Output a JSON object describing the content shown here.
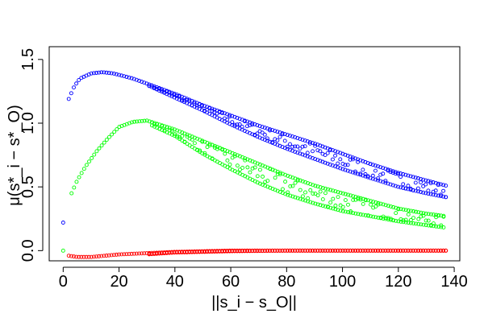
{
  "chart_data": {
    "type": "scatter",
    "xlabel": "||s_i − s_O||",
    "ylabel": "μ(s*_i − s*_O)",
    "xlim": [
      -5,
      142
    ],
    "ylim": [
      -0.08,
      1.6
    ],
    "x_ticks": [
      "0",
      "20",
      "40",
      "60",
      "80",
      "100",
      "120",
      "140"
    ],
    "y_ticks": [
      "0.0",
      "0.5",
      "1.0",
      "1.5"
    ],
    "grid": false,
    "series": [
      {
        "color": "#0000ff",
        "marker": "open-circle",
        "isolated_points": [
          [
            0,
            0.22
          ]
        ],
        "x_range": [
          2,
          137
        ],
        "upper_band": [
          [
            2,
            1.19
          ],
          [
            4,
            1.29
          ],
          [
            6,
            1.35
          ],
          [
            10,
            1.39
          ],
          [
            14,
            1.4
          ],
          [
            18,
            1.39
          ],
          [
            25,
            1.35
          ],
          [
            30,
            1.31
          ],
          [
            40,
            1.23
          ],
          [
            50,
            1.14
          ],
          [
            60,
            1.06
          ],
          [
            70,
            0.98
          ],
          [
            80,
            0.91
          ],
          [
            90,
            0.84
          ],
          [
            100,
            0.76
          ],
          [
            110,
            0.68
          ],
          [
            120,
            0.61
          ],
          [
            130,
            0.55
          ],
          [
            137,
            0.51
          ]
        ],
        "lower_band": [
          [
            2,
            1.19
          ],
          [
            4,
            1.29
          ],
          [
            6,
            1.33
          ],
          [
            10,
            1.38
          ],
          [
            14,
            1.4
          ],
          [
            18,
            1.38
          ],
          [
            25,
            1.34
          ],
          [
            30,
            1.3
          ],
          [
            40,
            1.2
          ],
          [
            50,
            1.1
          ],
          [
            60,
            0.99
          ],
          [
            70,
            0.89
          ],
          [
            80,
            0.8
          ],
          [
            90,
            0.72
          ],
          [
            100,
            0.64
          ],
          [
            110,
            0.57
          ],
          [
            120,
            0.5
          ],
          [
            130,
            0.45
          ],
          [
            137,
            0.42
          ]
        ]
      },
      {
        "color": "#00ff00",
        "marker": "open-circle",
        "isolated_points": [
          [
            0,
            0.0
          ]
        ],
        "x_range": [
          3,
          137
        ],
        "upper_band": [
          [
            3,
            0.45
          ],
          [
            5,
            0.55
          ],
          [
            8,
            0.66
          ],
          [
            12,
            0.78
          ],
          [
            16,
            0.88
          ],
          [
            20,
            0.97
          ],
          [
            25,
            1.01
          ],
          [
            30,
            1.02
          ],
          [
            40,
            0.95
          ],
          [
            50,
            0.86
          ],
          [
            60,
            0.77
          ],
          [
            70,
            0.68
          ],
          [
            80,
            0.59
          ],
          [
            90,
            0.51
          ],
          [
            100,
            0.45
          ],
          [
            110,
            0.39
          ],
          [
            120,
            0.33
          ],
          [
            130,
            0.29
          ],
          [
            137,
            0.27
          ]
        ],
        "lower_band": [
          [
            3,
            0.45
          ],
          [
            5,
            0.53
          ],
          [
            8,
            0.62
          ],
          [
            12,
            0.74
          ],
          [
            16,
            0.84
          ],
          [
            20,
            0.93
          ],
          [
            25,
            0.99
          ],
          [
            30,
            1.0
          ],
          [
            40,
            0.9
          ],
          [
            50,
            0.76
          ],
          [
            60,
            0.64
          ],
          [
            70,
            0.53
          ],
          [
            80,
            0.44
          ],
          [
            90,
            0.37
          ],
          [
            100,
            0.31
          ],
          [
            110,
            0.27
          ],
          [
            120,
            0.23
          ],
          [
            130,
            0.2
          ],
          [
            137,
            0.18
          ]
        ]
      },
      {
        "color": "#ff0000",
        "marker": "open-circle",
        "isolated_points": [],
        "x_range": [
          2,
          137
        ],
        "upper_band": [
          [
            2,
            -0.04
          ],
          [
            5,
            -0.05
          ],
          [
            10,
            -0.05
          ],
          [
            15,
            -0.04
          ],
          [
            20,
            -0.03
          ],
          [
            30,
            -0.02
          ],
          [
            40,
            -0.01
          ],
          [
            60,
            0.0
          ],
          [
            80,
            0.0
          ],
          [
            137,
            0.0
          ]
        ],
        "lower_band": [
          [
            2,
            -0.05
          ],
          [
            5,
            -0.06
          ],
          [
            10,
            -0.06
          ],
          [
            15,
            -0.05
          ],
          [
            20,
            -0.04
          ],
          [
            30,
            -0.03
          ],
          [
            40,
            -0.015
          ],
          [
            60,
            -0.005
          ],
          [
            80,
            0.0
          ],
          [
            137,
            0.0
          ]
        ]
      }
    ]
  }
}
